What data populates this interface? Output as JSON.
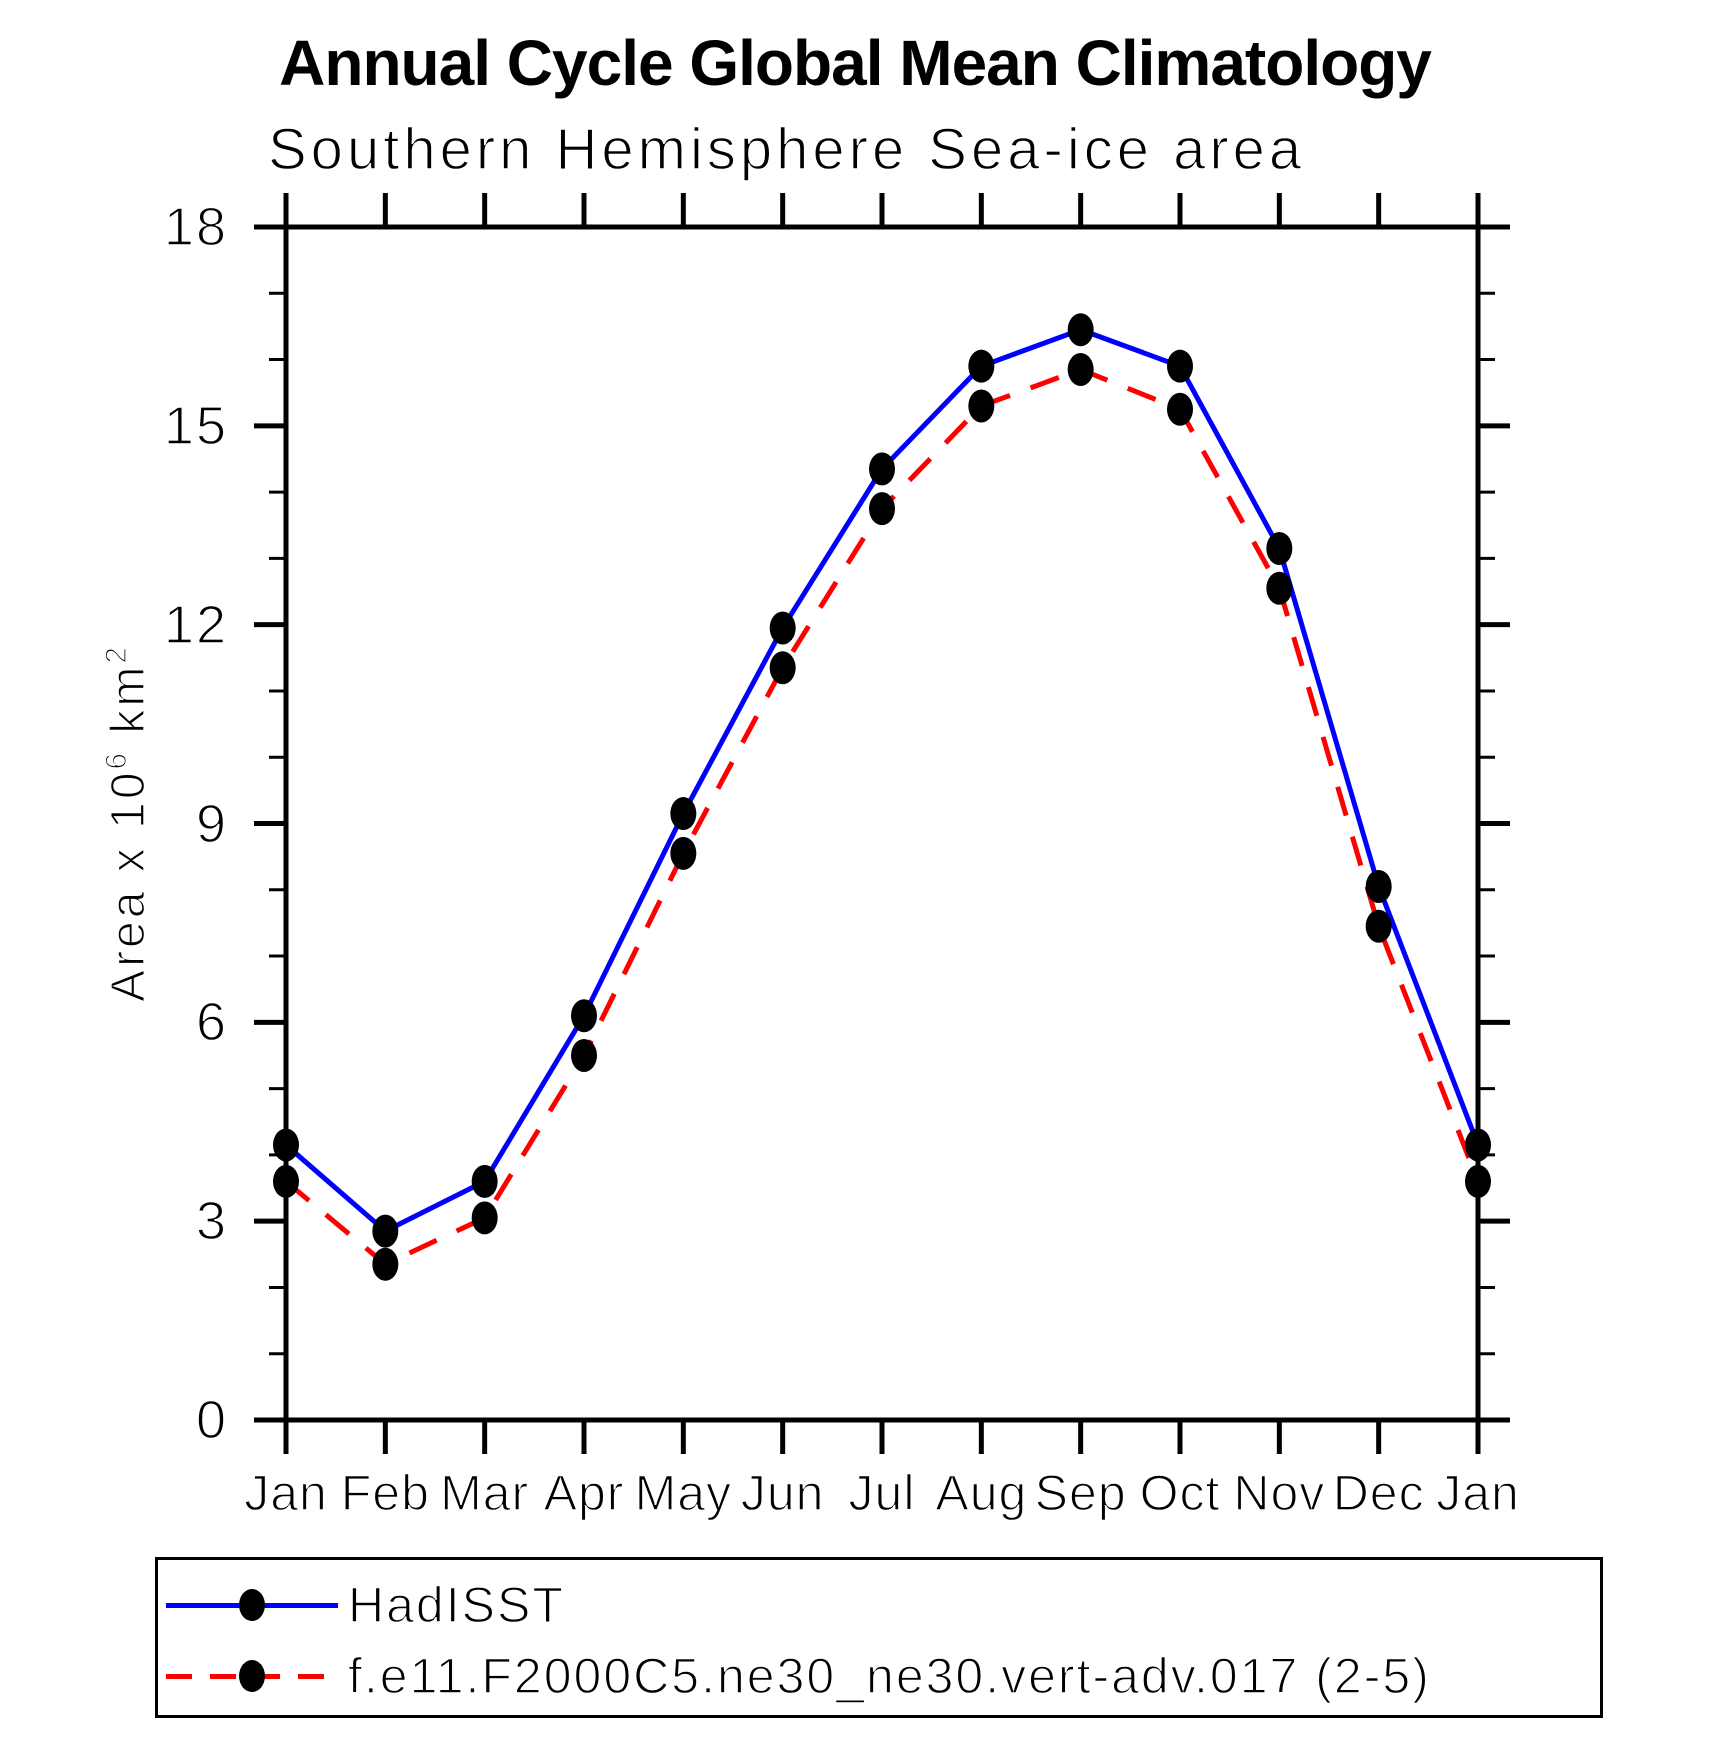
{
  "chart_data": {
    "type": "line",
    "title": "Annual Cycle Global Mean Climatology",
    "subtitle": "Southern Hemisphere Sea-ice area",
    "ylabel_parts": {
      "prefix": "Area x 10",
      "exp1": "6",
      "mid": " km",
      "exp2": "2"
    },
    "categories": [
      "Jan",
      "Feb",
      "Mar",
      "Apr",
      "May",
      "Jun",
      "Jul",
      "Aug",
      "Sep",
      "Oct",
      "Nov",
      "Dec",
      "Jan"
    ],
    "yticks": [
      0,
      3,
      6,
      9,
      12,
      15,
      18
    ],
    "ylim": [
      0,
      18
    ],
    "minor_tick_interval": 1,
    "grid": false,
    "legend_position": "bottom-box",
    "axis_color": "#000000",
    "marker_color": "#000000",
    "series": [
      {
        "name": "HadISST",
        "color": "#0000ff",
        "line_style": "solid",
        "marker": "filled-circle",
        "values": [
          4.15,
          2.85,
          3.6,
          6.1,
          9.15,
          11.95,
          14.35,
          15.9,
          16.45,
          15.9,
          13.15,
          8.05,
          4.15
        ]
      },
      {
        "name": "f.e11.F2000C5.ne30_ne30.vert-adv.017 (2-5)",
        "color": "#ff0000",
        "line_style": "dashed",
        "marker": "filled-circle",
        "values": [
          3.6,
          2.35,
          3.05,
          5.5,
          8.55,
          11.35,
          13.75,
          15.3,
          15.85,
          15.25,
          12.55,
          7.45,
          3.6
        ]
      }
    ]
  }
}
